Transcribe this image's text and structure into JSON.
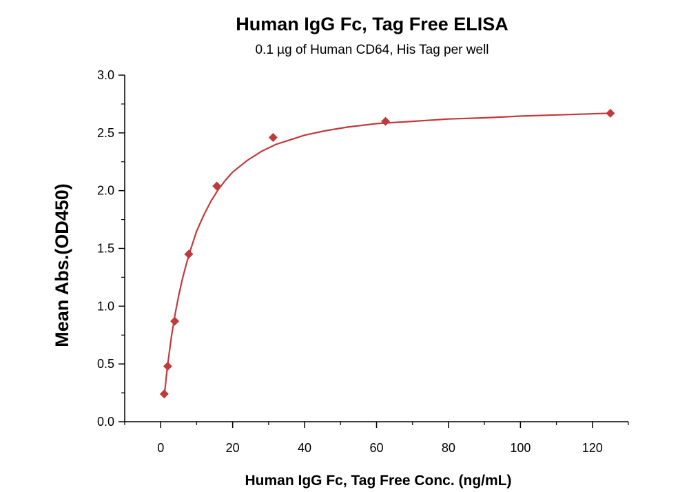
{
  "chart_data": {
    "type": "scatter",
    "title": "Human IgG Fc, Tag Free ELISA",
    "subtitle": "0.1 µg of Human CD64, His Tag per well",
    "xlabel": "Human IgG Fc, Tag Free Conc. (ng/mL)",
    "ylabel": "Mean Abs.(OD450)",
    "xlim": [
      -10,
      130
    ],
    "ylim": [
      0,
      3.0
    ],
    "x_ticks": [
      0,
      20,
      40,
      60,
      80,
      100,
      120
    ],
    "y_ticks": [
      0.0,
      0.5,
      1.0,
      1.5,
      2.0,
      2.5,
      3.0
    ],
    "x_tick_labels": [
      "0",
      "20",
      "40",
      "60",
      "80",
      "100",
      "120"
    ],
    "y_tick_labels": [
      "0.0",
      "0.5",
      "1.0",
      "1.5",
      "2.0",
      "2.5",
      "3.0"
    ],
    "grid": false,
    "series": [
      {
        "marker": "diamond",
        "color": "#c0393b",
        "points": [
          {
            "x": 0.98,
            "y": 0.24
          },
          {
            "x": 1.95,
            "y": 0.48
          },
          {
            "x": 3.9,
            "y": 0.87
          },
          {
            "x": 7.8,
            "y": 1.45
          },
          {
            "x": 15.6,
            "y": 2.04
          },
          {
            "x": 31.25,
            "y": 2.46
          },
          {
            "x": 62.5,
            "y": 2.6
          },
          {
            "x": 125,
            "y": 2.67
          }
        ]
      }
    ],
    "fit_curve": {
      "color": "#c0393b",
      "points": [
        [
          0.98,
          0.21
        ],
        [
          1.5,
          0.37
        ],
        [
          2,
          0.51
        ],
        [
          3,
          0.74
        ],
        [
          4,
          0.93
        ],
        [
          5,
          1.09
        ],
        [
          6,
          1.23
        ],
        [
          7,
          1.35
        ],
        [
          8,
          1.46
        ],
        [
          10,
          1.65
        ],
        [
          12,
          1.79
        ],
        [
          14,
          1.91
        ],
        [
          16,
          2.01
        ],
        [
          18,
          2.09
        ],
        [
          20,
          2.16
        ],
        [
          24,
          2.26
        ],
        [
          28,
          2.34
        ],
        [
          32,
          2.4
        ],
        [
          36,
          2.44
        ],
        [
          40,
          2.48
        ],
        [
          46,
          2.52
        ],
        [
          52,
          2.55
        ],
        [
          60,
          2.58
        ],
        [
          70,
          2.6
        ],
        [
          80,
          2.62
        ],
        [
          90,
          2.63
        ],
        [
          100,
          2.645
        ],
        [
          110,
          2.655
        ],
        [
          125,
          2.67
        ]
      ]
    }
  }
}
